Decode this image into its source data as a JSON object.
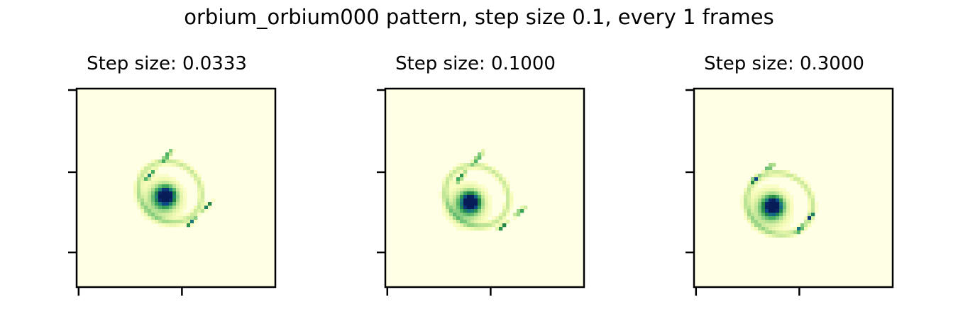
{
  "title": "orbium_orbium000 pattern, step size 0.1, every 1 frames",
  "chart_data": [
    {
      "type": "heatmap",
      "title": "Step size: 0.0333",
      "grid": false,
      "colormap": [
        "#ffffe5",
        "#f7fcb9",
        "#d9f0a3",
        "#addd8e",
        "#78c679",
        "#41ab5d",
        "#238443",
        "#1d7f7a",
        "#0c4f8a",
        "#0b2a6b",
        "#081d58"
      ],
      "pattern": {
        "blob_x": 0.45,
        "blob_y": 0.54,
        "ring_x": 0.47,
        "ring_y": 0.52,
        "ring_r": 0.165,
        "tilt_deg": 35,
        "streak_from": [
          0.48,
          0.31
        ],
        "streak_to": [
          0.35,
          0.46
        ],
        "streak2_from": [
          0.68,
          0.57
        ],
        "streak2_to": [
          0.56,
          0.69
        ]
      }
    },
    {
      "type": "heatmap",
      "title": "Step size: 0.1000",
      "grid": false,
      "colormap": [
        "#ffffe5",
        "#f7fcb9",
        "#d9f0a3",
        "#addd8e",
        "#78c679",
        "#41ab5d",
        "#238443",
        "#1d7f7a",
        "#0c4f8a",
        "#0b2a6b",
        "#081d58"
      ],
      "pattern": {
        "blob_x": 0.43,
        "blob_y": 0.57,
        "ring_x": 0.46,
        "ring_y": 0.54,
        "ring_r": 0.165,
        "tilt_deg": 35,
        "streak_from": [
          0.49,
          0.32
        ],
        "streak_to": [
          0.36,
          0.47
        ],
        "streak2_from": [
          0.7,
          0.6
        ],
        "streak2_to": [
          0.57,
          0.71
        ]
      }
    },
    {
      "type": "heatmap",
      "title": "Step size: 0.3000",
      "grid": false,
      "colormap": [
        "#ffffe5",
        "#f7fcb9",
        "#d9f0a3",
        "#addd8e",
        "#78c679",
        "#41ab5d",
        "#238443",
        "#1d7f7a",
        "#0c4f8a",
        "#0b2a6b",
        "#081d58"
      ],
      "pattern": {
        "blob_x": 0.4,
        "blob_y": 0.59,
        "ring_x": 0.43,
        "ring_y": 0.58,
        "ring_r": 0.17,
        "tilt_deg": 25,
        "streak_from": [
          0.4,
          0.38
        ],
        "streak_to": [
          0.29,
          0.47
        ],
        "streak2_from": [
          0.6,
          0.63
        ],
        "streak2_to": [
          0.52,
          0.72
        ]
      }
    }
  ]
}
